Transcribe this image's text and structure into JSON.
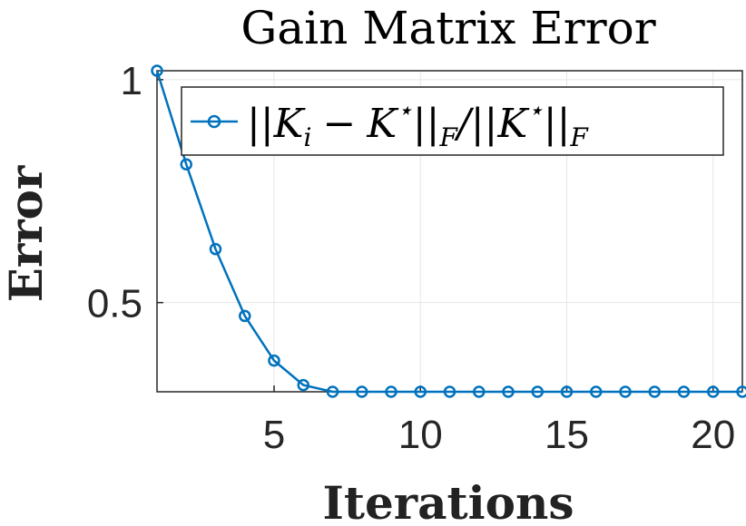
{
  "chart_data": {
    "type": "line",
    "title": "Gain Matrix Error",
    "xlabel": "Iterations",
    "ylabel": "Error",
    "xlim": [
      1,
      21
    ],
    "ylim": [
      0.3,
      1.02
    ],
    "x_ticks": [
      5,
      10,
      15,
      20
    ],
    "x_tick_labels": [
      "5",
      "10",
      "15",
      "20"
    ],
    "y_ticks": [
      0.5,
      1
    ],
    "y_tick_labels": [
      "0.5",
      "1"
    ],
    "grid": true,
    "legend_position": "top-right",
    "series": [
      {
        "name": "||K_i − K*||_F / ||K*||_F",
        "color": "#0072BD",
        "marker": "circle",
        "x": [
          1,
          2,
          3,
          4,
          5,
          6,
          7,
          8,
          9,
          10,
          11,
          12,
          13,
          14,
          15,
          16,
          17,
          18,
          19,
          20,
          21
        ],
        "y": [
          1.02,
          0.81,
          0.62,
          0.47,
          0.37,
          0.315,
          0.3,
          0.3,
          0.3,
          0.3,
          0.3,
          0.3,
          0.3,
          0.3,
          0.3,
          0.3,
          0.3,
          0.3,
          0.3,
          0.3,
          0.3
        ]
      }
    ],
    "legend": {
      "parts": {
        "pipes_open": "||",
        "k_i": "K",
        "i_sub": "i",
        "minus": "−",
        "k_star": "K",
        "star": "⋆",
        "pipes_close": "||",
        "f_sub": "F",
        "slash": "/",
        "pipes_open2": "||",
        "k_star2": "K",
        "star2": "⋆",
        "pipes_close2": "||",
        "f_sub2": "F"
      }
    }
  }
}
